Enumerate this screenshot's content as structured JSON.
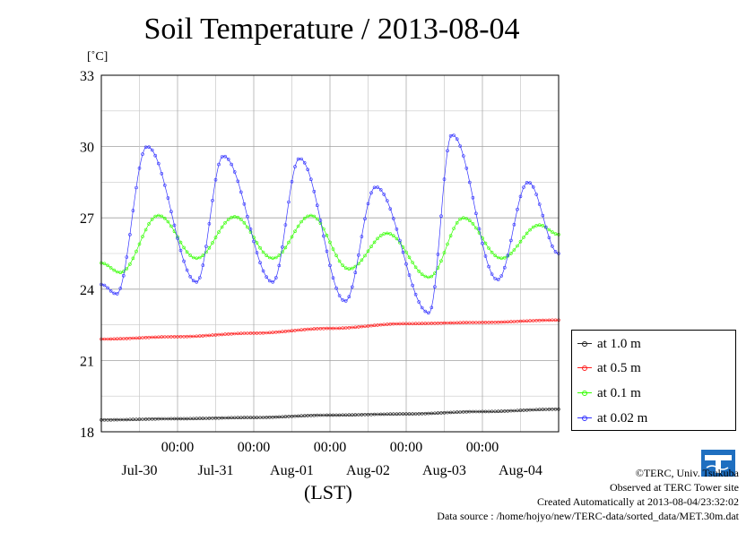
{
  "page": {
    "title": "Soil Temperature / 2013-08-04",
    "unit": "[˚C]",
    "xaxis_note": "(LST)"
  },
  "chart_data": {
    "type": "line",
    "title": "Soil Temperature / 2013-08-04",
    "ylabel": "[˚C]",
    "xlabel": "(LST)",
    "ylim": [
      18,
      33
    ],
    "xlim_days": [
      0,
      6
    ],
    "yticks": [
      "18",
      "21",
      "24",
      "27",
      "30",
      "33"
    ],
    "xticks_time": [
      "00:00",
      "00:00",
      "00:00",
      "00:00",
      "00:00"
    ],
    "xticks_date": [
      "Jul-30",
      "Jul-31",
      "Aug-01",
      "Aug-02",
      "Aug-03",
      "Aug-04"
    ],
    "grid": true,
    "legend_position": "right",
    "series": [
      {
        "name": "at 1.0 m",
        "color": "#222222",
        "x": [
          0,
          1,
          2,
          3,
          4,
          5,
          6
        ],
        "y": [
          18.5,
          18.55,
          18.6,
          18.7,
          18.75,
          18.85,
          18.95
        ]
      },
      {
        "name": "at 0.5 m",
        "color": "#ff2020",
        "x": [
          0,
          1,
          2,
          3,
          4,
          5,
          6
        ],
        "y": [
          21.9,
          22.0,
          22.15,
          22.35,
          22.55,
          22.6,
          22.7
        ]
      },
      {
        "name": "at 0.1 m",
        "color": "#33ff00",
        "x": [
          0,
          0.25,
          0.75,
          1.25,
          1.75,
          2.25,
          2.75,
          3.25,
          3.75,
          4.3,
          4.75,
          5.25,
          5.75,
          6
        ],
        "y": [
          25.1,
          24.7,
          27.1,
          25.3,
          27.05,
          25.3,
          27.1,
          24.85,
          26.35,
          24.5,
          27.0,
          25.3,
          26.7,
          26.3
        ]
      },
      {
        "name": "at 0.02 m",
        "color": "#3333ff",
        "x": [
          0,
          0.2,
          0.6,
          1.25,
          1.6,
          2.25,
          2.6,
          3.2,
          3.6,
          4.3,
          4.6,
          5.2,
          5.6,
          6
        ],
        "y": [
          24.2,
          23.8,
          30.0,
          24.3,
          29.6,
          24.3,
          29.5,
          23.5,
          28.3,
          23.0,
          30.5,
          24.4,
          28.5,
          25.5
        ]
      }
    ]
  },
  "credits": {
    "logo_alt": "TERC",
    "line1": "©TERC, Univ. Tsukuba",
    "line2": "Observed at TERC Tower site",
    "line3": "Created Automatically at 2013-08-04/23:32:02",
    "line4": "Data source : /home/hojyo/new/TERC-data/sorted_data/MET.30m.dat"
  }
}
